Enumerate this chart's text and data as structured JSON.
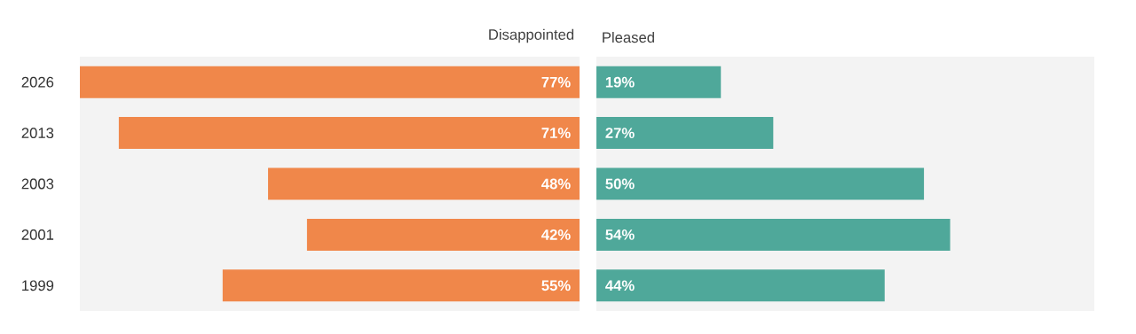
{
  "chart_data": [
    {
      "type": "bar",
      "orientation": "horizontal",
      "title": "Disappointed",
      "categories": [
        "2026",
        "2013",
        "2003",
        "2001",
        "1999"
      ],
      "values": [
        77,
        71,
        48,
        42,
        55
      ],
      "color": "#f0874a",
      "value_labels": [
        "77%",
        "71%",
        "48%",
        "42%",
        "55%"
      ],
      "xlim": [
        77,
        0
      ],
      "tick_labels": "y"
    },
    {
      "type": "bar",
      "orientation": "horizontal",
      "title": "Pleased",
      "categories": [
        "2026",
        "2013",
        "2003",
        "2001",
        "1999"
      ],
      "values": [
        19,
        27,
        50,
        54,
        44
      ],
      "color": "#4fa89a",
      "value_labels": [
        "19%",
        "27%",
        "50%",
        "54%",
        "44%"
      ],
      "xlim": [
        0,
        76
      ],
      "tick_labels": false
    }
  ]
}
